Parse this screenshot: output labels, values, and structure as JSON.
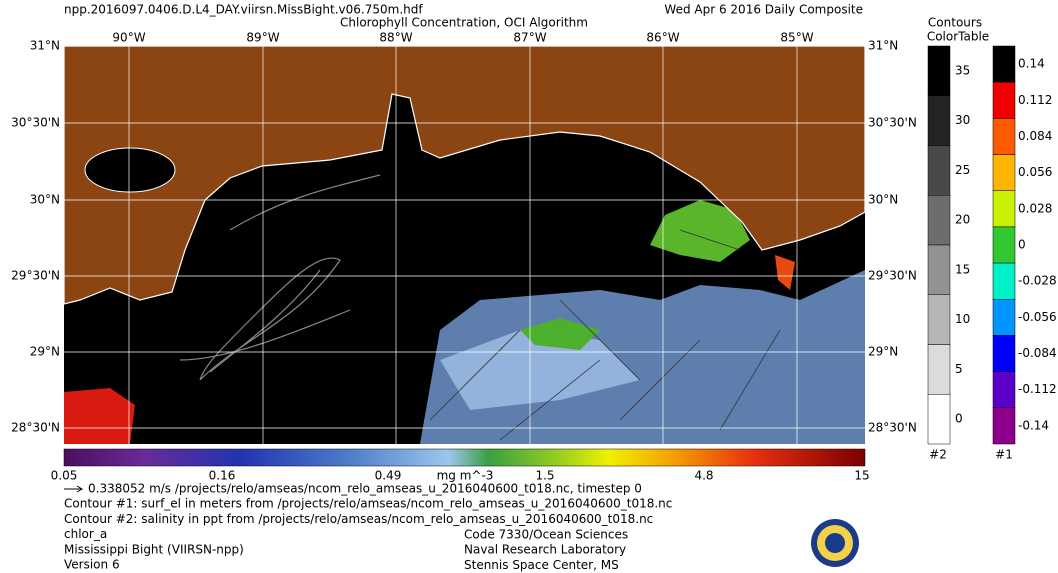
{
  "header": {
    "filename": "npp.2016097.0406.D.L4_DAY.viirsn.MissBight.v06.750m.hdf",
    "title": "Chlorophyll Concentration, OCI Algorithm",
    "date": "Wed Apr  6 2016 Daily Composite"
  },
  "map": {
    "lon_labels": [
      "90°W",
      "89°W",
      "88°W",
      "87°W",
      "86°W",
      "85°W"
    ],
    "lat_labels": [
      "31°N",
      "30°30'N",
      "30°N",
      "29°30'N",
      "29°N",
      "28°30'N"
    ]
  },
  "colorbar": {
    "labels": [
      "0.05",
      "0.16",
      "0.49",
      "1.5",
      "4.8",
      "15"
    ],
    "unit": "mg m^-3"
  },
  "legend": {
    "title_line1": "Contours",
    "title_line2": "ColorTable",
    "contour2_labels": [
      "35",
      "30",
      "25",
      "20",
      "15",
      "10",
      "5",
      "0"
    ],
    "contour2_id": "#2",
    "contour1_labels": [
      "0.14",
      "0.112",
      "0.084",
      "0.056",
      "0.028",
      "0",
      "-0.028",
      "-0.056",
      "-0.084",
      "-0.112",
      "-0.14"
    ],
    "contour1_id": "#1"
  },
  "footer": {
    "lines": [
      "0.338052 m/s /projects/relo/amseas/ncom_relo_amseas_u_2016040600_t018.nc, timestep 0",
      "Contour #1: surf_el in meters from /projects/relo/amseas/ncom_relo_amseas_u_2016040600_t018.nc",
      "Contour #2: salinity in ppt from /projects/relo/amseas/ncom_relo_amseas_u_2016040600_t018.nc",
      "chlor_a",
      "Mississippi Bight (VIIRSN-npp)",
      "Version 6"
    ],
    "credits": [
      "Code 7330/Ocean Sciences",
      "Naval Research Laboratory",
      "Stennis Space Center, MS"
    ]
  }
}
